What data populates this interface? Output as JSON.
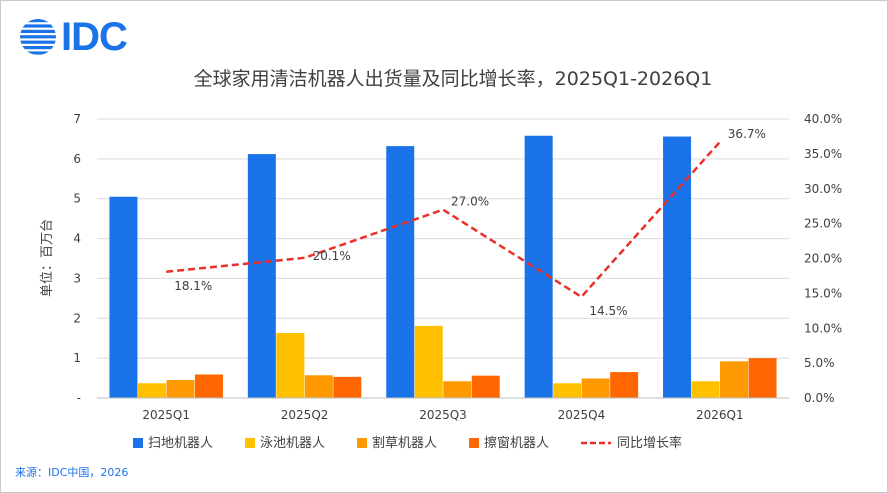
{
  "header": {
    "logo_text": "IDC",
    "logo_icon": "globe-stripes-icon"
  },
  "footer": {
    "source": "来源：IDC中国，2026"
  },
  "chart_data": {
    "type": "bar",
    "title": "全球家用清洁机器人出货量及同比增长率，2025Q1-2026Q1",
    "ylabel": "单位：百万台",
    "xlabel": "",
    "categories": [
      "2025Q1",
      "2025Q2",
      "2025Q3",
      "2025Q4",
      "2026Q1"
    ],
    "ylim": [
      0,
      7
    ],
    "y_ticks": [
      "-",
      "1",
      "2",
      "3",
      "4",
      "5",
      "6",
      "7"
    ],
    "y2lim": [
      0,
      40
    ],
    "y2_ticks": [
      "0.0%",
      "5.0%",
      "10.0%",
      "15.0%",
      "20.0%",
      "25.0%",
      "30.0%",
      "35.0%",
      "40.0%"
    ],
    "grid": true,
    "legend_position": "bottom",
    "series": [
      {
        "name": "扫地机器人",
        "type": "bar",
        "color": "#1a73e8",
        "values": [
          5.05,
          6.12,
          6.32,
          6.58,
          6.56
        ]
      },
      {
        "name": "泳池机器人",
        "type": "bar",
        "color": "#ffc000",
        "values": [
          0.37,
          1.63,
          1.81,
          0.37,
          0.42
        ]
      },
      {
        "name": "割草机器人",
        "type": "bar",
        "color": "#ff9900",
        "values": [
          0.45,
          0.57,
          0.42,
          0.49,
          0.92
        ]
      },
      {
        "name": "擦窗机器人",
        "type": "bar",
        "color": "#ff6600",
        "values": [
          0.59,
          0.53,
          0.56,
          0.65,
          1.0
        ]
      },
      {
        "name": "同比增长率",
        "type": "line",
        "axis": "right",
        "color": "#e8312a",
        "dashed": true,
        "values": [
          18.1,
          20.1,
          27.0,
          14.5,
          36.7
        ],
        "labels": [
          "18.1%",
          "20.1%",
          "27.0%",
          "14.5%",
          "36.7%"
        ]
      }
    ]
  }
}
